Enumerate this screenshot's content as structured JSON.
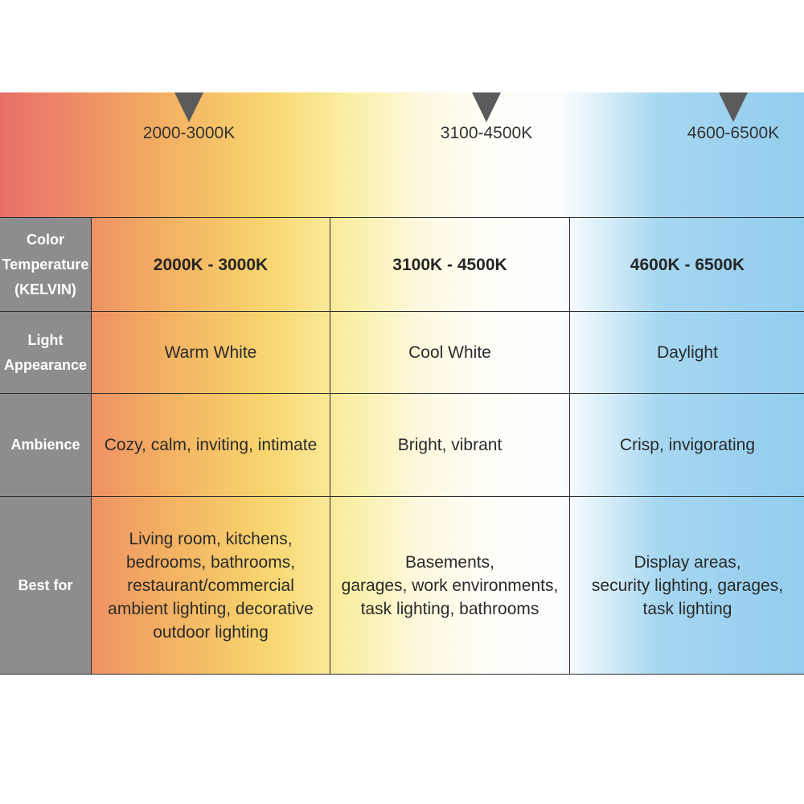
{
  "markers": [
    "2000-3000K",
    "3100-4500K",
    "4600-6500K"
  ],
  "rows": [
    {
      "label": [
        "Color",
        "Temperature",
        "(KELVIN)"
      ],
      "cells": [
        [
          "2000K - 3000K"
        ],
        [
          "3100K - 4500K"
        ],
        [
          "4600K - 6500K"
        ]
      ]
    },
    {
      "label": [
        "Light",
        "Appearance"
      ],
      "cells": [
        [
          "Warm White"
        ],
        [
          "Cool White"
        ],
        [
          "Daylight"
        ]
      ]
    },
    {
      "label": [
        "Ambience"
      ],
      "cells": [
        [
          "Cozy, calm, inviting, intimate"
        ],
        [
          "Bright, vibrant"
        ],
        [
          "Crisp, invigorating"
        ]
      ]
    },
    {
      "label": [
        "Best for"
      ],
      "cells": [
        [
          "Living room, kitchens,",
          "bedrooms, bathrooms,",
          "restaurant/commercial",
          "ambient lighting, decorative",
          "outdoor lighting"
        ],
        [
          "Basements,",
          "garages, work environments,",
          "task lighting, bathrooms"
        ],
        [
          "Display areas,",
          "security lighting, garages,",
          "task lighting"
        ]
      ]
    }
  ]
}
